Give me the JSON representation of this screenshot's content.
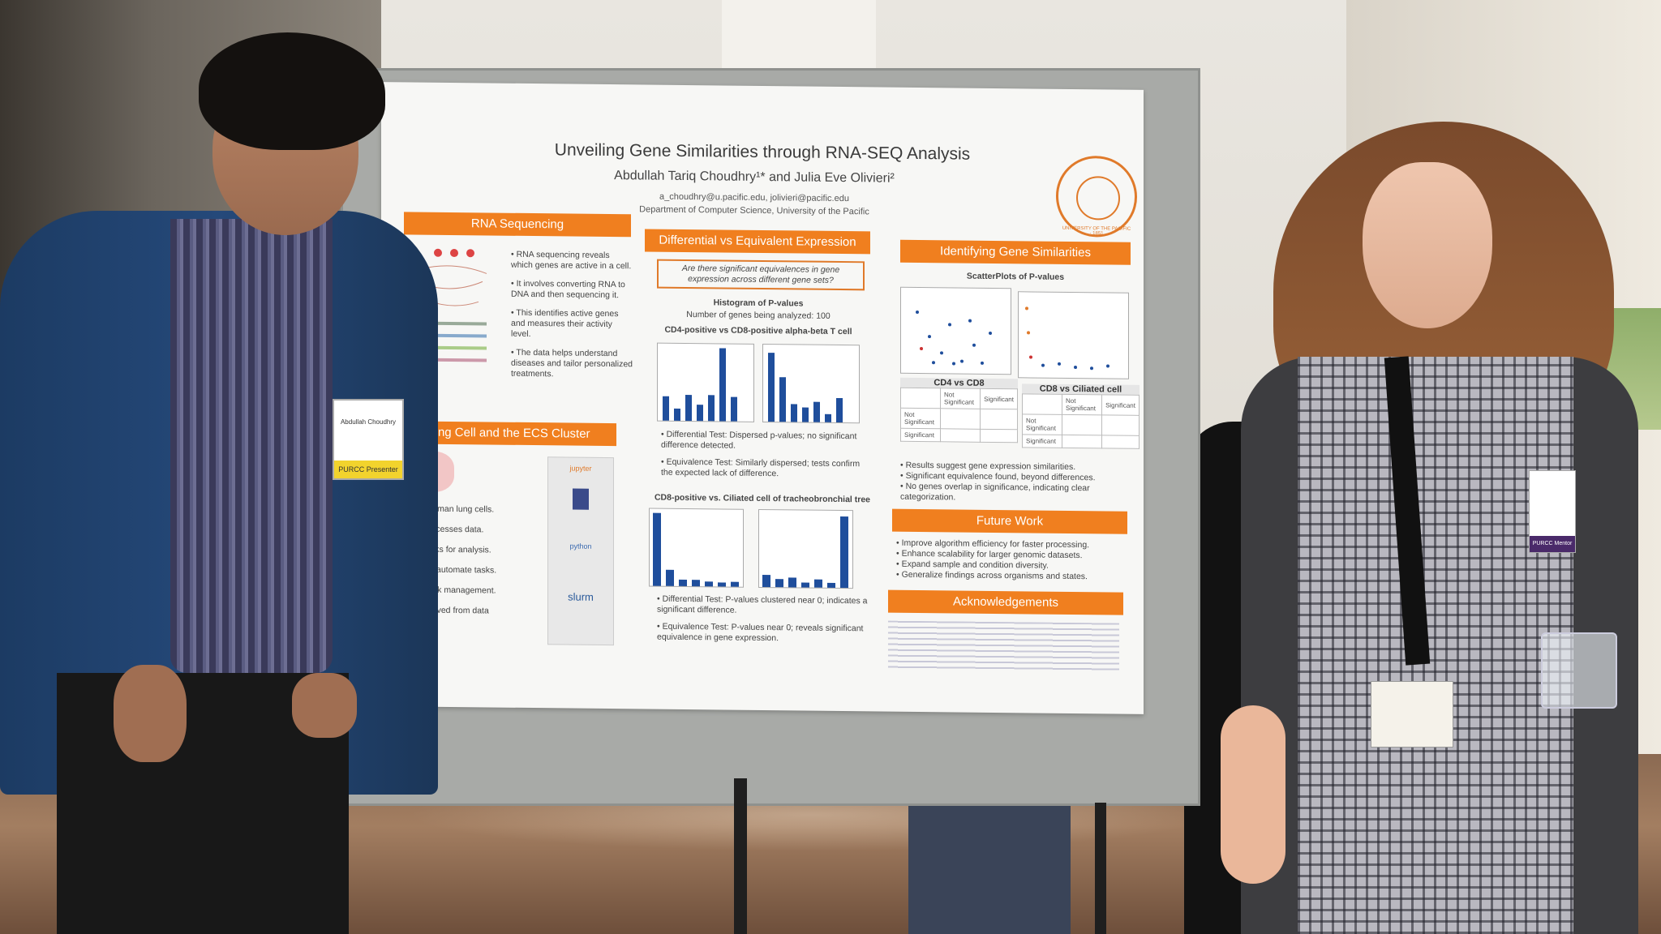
{
  "poster": {
    "title": "Unveiling Gene Similarities through RNA-SEQ Analysis",
    "authors": "Abdullah Tariq Choudhry¹* and Julia Eve Olivieri²",
    "emails": "a_choudhry@u.pacific.edu, jolivieri@pacific.edu",
    "department": "Department of Computer Science, University of the Pacific",
    "seal_text": "UNIVERSITY OF THE PACIFIC · 1851",
    "col1": {
      "header": "RNA Sequencing",
      "bullets": [
        "RNA sequencing reveals which genes are active in a cell.",
        "It involves converting RNA to DNA and then sequencing it.",
        "This identifies active genes and measures their activity level.",
        "The data helps understand diseases and tailor personalized treatments."
      ],
      "header2": "an Lung Cell and the ECS Cluster",
      "lines": [
        "om human lung cells.",
        "er processes data.",
        "tebooks for analysis.",
        "cripts automate tasks.",
        "for task management.",
        "ts derived from data"
      ],
      "logo_jupyter": "jupyter",
      "logo_python": "python",
      "logo_slurm": "slurm"
    },
    "col2": {
      "header": "Differential vs Equivalent Expression",
      "question": "Are there significant equivalences in gene expression across different gene sets?",
      "hist_title": "Histogram of P-values",
      "genes_count": "Number of genes being analyzed: 100",
      "sub1": "CD4-positive vs CD8-positive alpha-beta T cell",
      "bullets1": [
        "Differential Test: Dispersed p-values; no significant difference detected.",
        "Equivalence Test: Similarly dispersed; tests confirm the expected lack of difference."
      ],
      "sub2": "CD8-positive vs. Ciliated cell of tracheobronchial tree",
      "bullets2": [
        "Differential Test: P-values clustered near 0; indicates a significant difference.",
        "Equivalence Test: P-values near 0; reveals significant equivalence in gene expression."
      ]
    },
    "col3": {
      "header": "Identifying Gene Similarities",
      "scatter_title": "ScatterPlots of P-values",
      "table1_title": "CD4 vs CD8",
      "table2_title": "CD8 vs Ciliated cell",
      "table_col_headers": [
        "Not Significant",
        "Significant"
      ],
      "table_row_headers": [
        "Not Significant",
        "Significant"
      ],
      "bullets": [
        "Results suggest gene expression similarities.",
        "Significant equivalence found, beyond differences.",
        "No genes overlap in significance, indicating clear categorization."
      ],
      "future_header": "Future Work",
      "future_bullets": [
        "Improve algorithm efficiency for faster processing.",
        "Enhance scalability for larger genomic datasets.",
        "Expand sample and condition diversity.",
        "Generalize findings across organisms and states."
      ],
      "ack_header": "Acknowledgements"
    }
  },
  "badges": {
    "man_name": "Abdullah Choudhry",
    "man_role": "PURCC Presenter",
    "woman_role": "PURCC Mentor"
  },
  "colors": {
    "accent_orange": "#f07f1f",
    "bar_blue": "#1f4e9c"
  }
}
